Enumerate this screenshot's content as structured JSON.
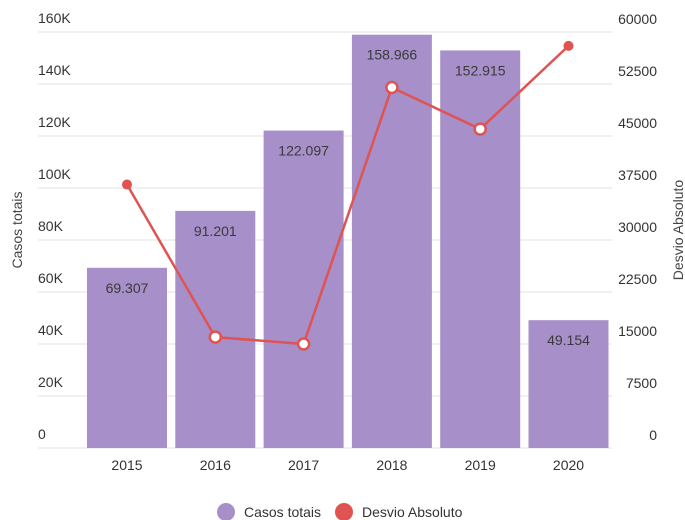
{
  "chart_data": {
    "type": "bar",
    "categories": [
      "2015",
      "2016",
      "2017",
      "2018",
      "2019",
      "2020"
    ],
    "series": [
      {
        "name": "Casos totais",
        "type": "bar",
        "axis": "left",
        "color": "#a78fc9",
        "values": [
          69307,
          91201,
          122097,
          158966,
          152915,
          49154
        ],
        "labels": [
          "69.307",
          "91.201",
          "122.097",
          "158.966",
          "152.915",
          "49.154"
        ]
      },
      {
        "name": "Desvio Absoluto",
        "type": "line",
        "axis": "right",
        "color": "#e05353",
        "values": [
          38000,
          16000,
          15000,
          52000,
          46000,
          58000
        ]
      }
    ],
    "ylabel": "Casos totais",
    "y2label": "Desvio Absoluto",
    "ylim": [
      0,
      160000
    ],
    "y2lim": [
      0,
      60000
    ],
    "yticks": [
      0,
      20000,
      40000,
      60000,
      80000,
      100000,
      120000,
      140000,
      160000
    ],
    "ytick_labels": [
      "0",
      "20K",
      "40K",
      "60K",
      "80K",
      "100K",
      "120K",
      "140K",
      "160K"
    ],
    "y2ticks": [
      0,
      7500,
      15000,
      22500,
      30000,
      37500,
      45000,
      52500,
      60000
    ],
    "y2tick_labels": [
      "0",
      "7500",
      "15000",
      "22500",
      "30000",
      "37500",
      "45000",
      "52500",
      "60000"
    ],
    "grid": true,
    "legend": "bottom-center"
  }
}
